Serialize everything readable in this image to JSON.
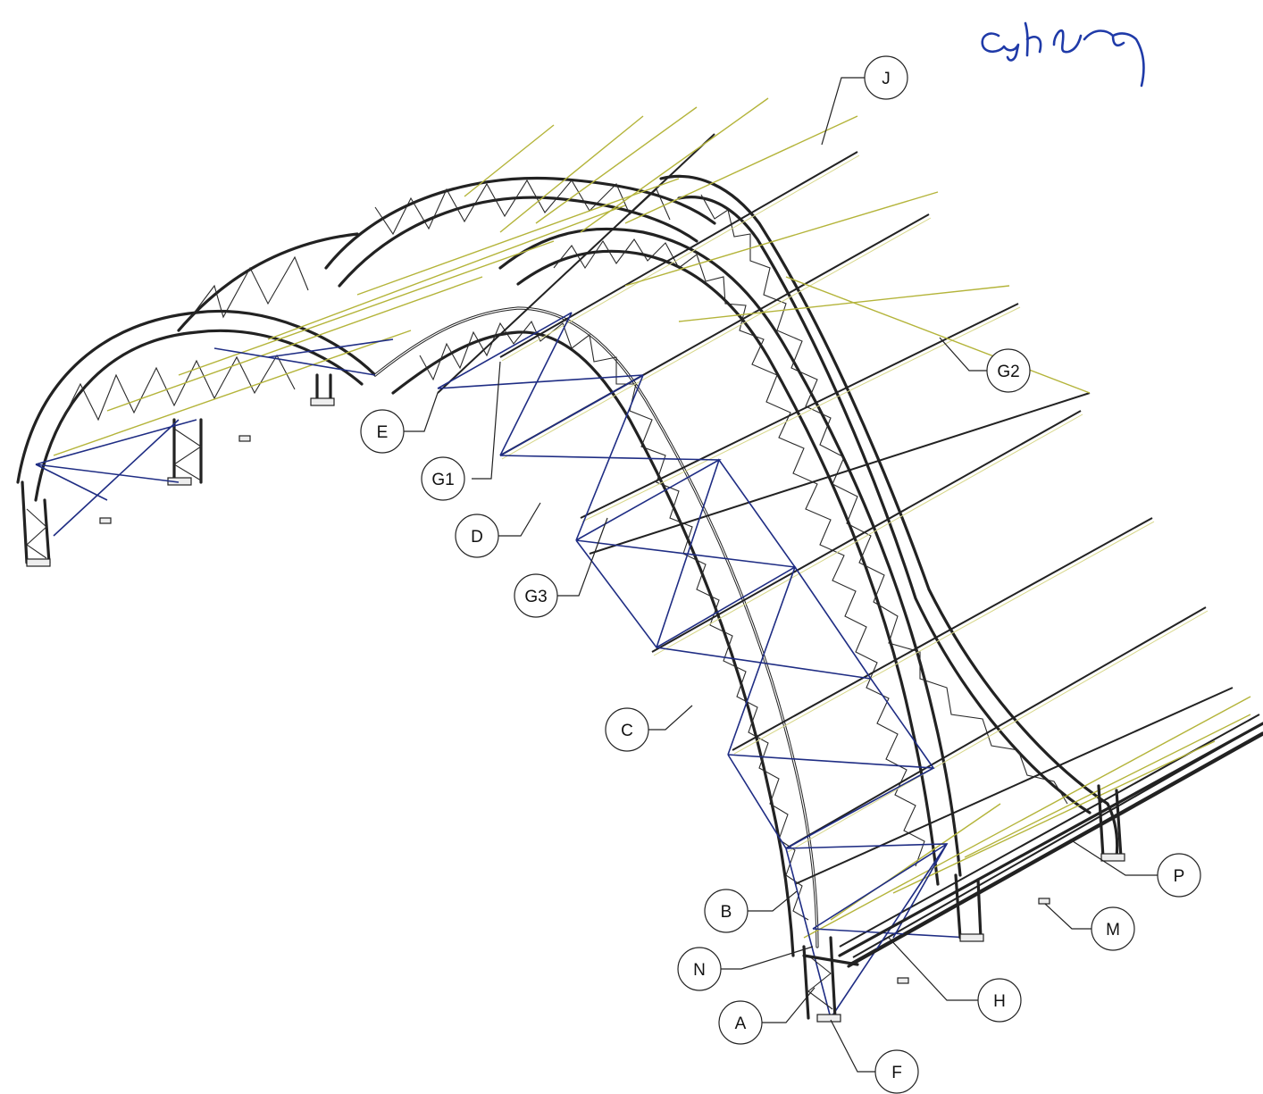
{
  "colors": {
    "frame": "#222222",
    "cable": "#b4b43a",
    "bracing": "#1f2d84",
    "signature_ink": "#1f3aa8"
  },
  "callouts": [
    {
      "id": "J",
      "label": "J"
    },
    {
      "id": "G2",
      "label": "G2"
    },
    {
      "id": "E",
      "label": "E"
    },
    {
      "id": "G1",
      "label": "G1"
    },
    {
      "id": "D",
      "label": "D"
    },
    {
      "id": "G3",
      "label": "G3"
    },
    {
      "id": "C",
      "label": "C"
    },
    {
      "id": "B",
      "label": "B"
    },
    {
      "id": "N",
      "label": "N"
    },
    {
      "id": "A",
      "label": "A"
    },
    {
      "id": "F",
      "label": "F"
    },
    {
      "id": "H",
      "label": "H"
    },
    {
      "id": "P",
      "label": "P"
    },
    {
      "id": "M",
      "label": "M"
    }
  ],
  "signature": {
    "text": "Gary Kelley"
  }
}
